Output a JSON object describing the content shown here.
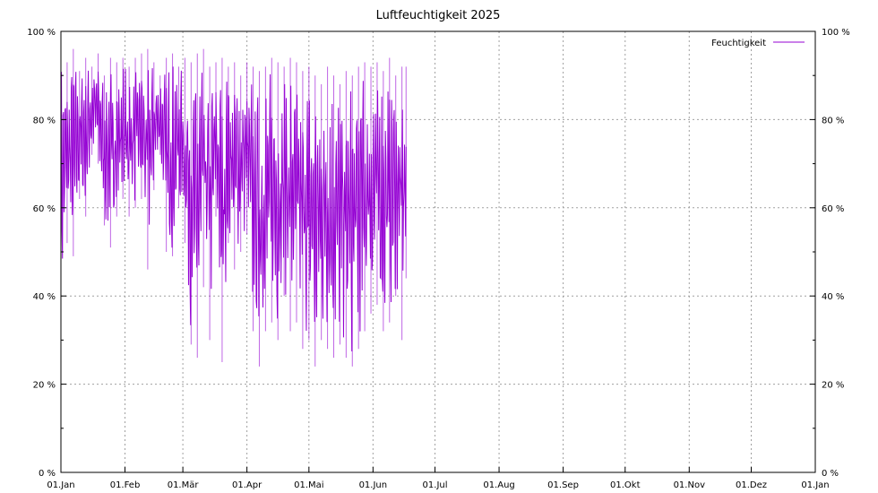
{
  "chart_data": {
    "type": "line",
    "title": "Luftfeuchtigkeit 2025",
    "xlabel": "",
    "ylabel": "",
    "x_type": "date",
    "xlim": [
      "2025-01-01",
      "2026-01-01"
    ],
    "ylim": [
      0,
      100
    ],
    "y_ticks": [
      0,
      20,
      40,
      60,
      80,
      100
    ],
    "y_tick_labels": [
      "0 %",
      "20 %",
      "40 %",
      "60 %",
      "80 %",
      "100 %"
    ],
    "x_ticks": [
      "2025-01-01",
      "2025-02-01",
      "2025-03-01",
      "2025-04-01",
      "2025-05-01",
      "2025-06-01",
      "2025-07-01",
      "2025-08-01",
      "2025-09-01",
      "2025-10-01",
      "2025-11-01",
      "2025-12-01",
      "2026-01-01"
    ],
    "x_tick_labels": [
      "01.Jan",
      "01.Feb",
      "01.Mär",
      "01.Apr",
      "01.Mai",
      "01.Jun",
      "01.Jul",
      "01.Aug",
      "01.Sep",
      "01.Okt",
      "01.Nov",
      "01.Dez",
      "01.Jan"
    ],
    "grid": true,
    "legend_position": "top-right",
    "series": [
      {
        "name": "Feuchtigkeit",
        "color": "#9400d3",
        "x": [
          "2025-01-01",
          "2025-01-04",
          "2025-01-07",
          "2025-01-10",
          "2025-01-13",
          "2025-01-16",
          "2025-01-19",
          "2025-01-22",
          "2025-01-25",
          "2025-01-28",
          "2025-01-31",
          "2025-02-03",
          "2025-02-06",
          "2025-02-09",
          "2025-02-12",
          "2025-02-15",
          "2025-02-18",
          "2025-02-21",
          "2025-02-24",
          "2025-02-27",
          "2025-03-02",
          "2025-03-05",
          "2025-03-08",
          "2025-03-11",
          "2025-03-14",
          "2025-03-17",
          "2025-03-20",
          "2025-03-23",
          "2025-03-26",
          "2025-03-29",
          "2025-04-01",
          "2025-04-04",
          "2025-04-07",
          "2025-04-10",
          "2025-04-13",
          "2025-04-16",
          "2025-04-19",
          "2025-04-22",
          "2025-04-25",
          "2025-04-28",
          "2025-05-01",
          "2025-05-04",
          "2025-05-07",
          "2025-05-10",
          "2025-05-13",
          "2025-05-16",
          "2025-05-19",
          "2025-05-22",
          "2025-05-25",
          "2025-05-28",
          "2025-05-31",
          "2025-06-03",
          "2025-06-06",
          "2025-06-09",
          "2025-06-12",
          "2025-06-15",
          "2025-06-17"
        ],
        "min": [
          38,
          52,
          49,
          62,
          58,
          72,
          70,
          56,
          51,
          58,
          62,
          58,
          60,
          62,
          46,
          64,
          72,
          50,
          49,
          60,
          52,
          29,
          26,
          42,
          30,
          58,
          25,
          52,
          46,
          50,
          54,
          32,
          24,
          32,
          34,
          30,
          40,
          32,
          34,
          28,
          30,
          24,
          30,
          28,
          26,
          29,
          26,
          24,
          28,
          32,
          36,
          38,
          32,
          34,
          40,
          30,
          44
        ],
        "max": [
          95,
          93,
          96,
          91,
          94,
          92,
          95,
          90,
          94,
          93,
          94,
          92,
          94,
          95,
          96,
          93,
          90,
          94,
          95,
          92,
          94,
          93,
          95,
          96,
          92,
          93,
          94,
          92,
          93,
          90,
          93,
          92,
          91,
          92,
          94,
          93,
          92,
          94,
          93,
          91,
          92,
          90,
          88,
          92,
          90,
          88,
          91,
          90,
          92,
          93,
          92,
          93,
          91,
          94,
          90,
          92,
          92
        ]
      }
    ]
  }
}
